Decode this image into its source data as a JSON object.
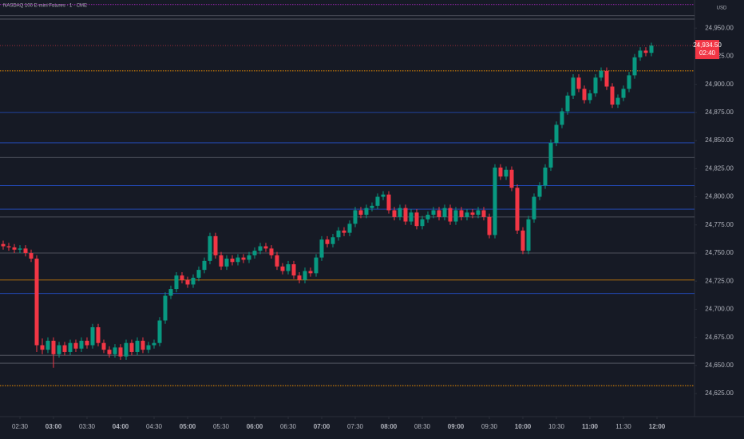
{
  "chart_data": {
    "type": "candlestick",
    "title": "NASDAQ 100 E-mini Futures · 1 · CME",
    "currency": "USD",
    "last_price": {
      "value": 24934.5,
      "label": "24,934.50"
    },
    "countdown": "02:40",
    "up_color": "#089981",
    "down_color": "#f23645",
    "ylim": [
      24613,
      24975
    ],
    "yticks": [
      {
        "value": 24625,
        "label": "24,625.00"
      },
      {
        "value": 24650,
        "label": "24,650.00"
      },
      {
        "value": 24675,
        "label": "24,675.00"
      },
      {
        "value": 24700,
        "label": "24,700.00"
      },
      {
        "value": 24725,
        "label": "24,725.00"
      },
      {
        "value": 24750,
        "label": "24,750.00"
      },
      {
        "value": 24775,
        "label": "24,775.00"
      },
      {
        "value": 24800,
        "label": "24,800.00"
      },
      {
        "value": 24825,
        "label": "24,825.00"
      },
      {
        "value": 24850,
        "label": "24,850.00"
      },
      {
        "value": 24875,
        "label": "24,875.00"
      },
      {
        "value": 24900,
        "label": "24,900.00"
      },
      {
        "value": 24925,
        "label": "24,925.00"
      },
      {
        "value": 24950,
        "label": "24,950.00"
      }
    ],
    "xticks": [
      "02:30",
      "03:00",
      "03:30",
      "04:00",
      "04:30",
      "05:00",
      "05:30",
      "06:00",
      "06:30",
      "07:00",
      "07:30",
      "08:00",
      "08:30",
      "09:00",
      "09:30",
      "10:00",
      "10:30",
      "11:00",
      "11:30",
      "12:00"
    ],
    "levels": [
      {
        "value": 24971,
        "color": "#9c27b0",
        "style": "dotted"
      },
      {
        "value": 24961,
        "color": "#787b86",
        "style": "solid"
      },
      {
        "value": 24958,
        "color": "#787b86",
        "style": "solid"
      },
      {
        "value": 24912,
        "color": "#ff9800",
        "style": "dotted"
      },
      {
        "value": 24875,
        "color": "#2962ff",
        "style": "solid"
      },
      {
        "value": 24848,
        "color": "#2962ff",
        "style": "solid"
      },
      {
        "value": 24835,
        "color": "#787b86",
        "style": "solid"
      },
      {
        "value": 24810,
        "color": "#2962ff",
        "style": "solid"
      },
      {
        "value": 24789,
        "color": "#2962ff",
        "style": "solid"
      },
      {
        "value": 24782,
        "color": "#787b86",
        "style": "solid"
      },
      {
        "value": 24750,
        "color": "#787b86",
        "style": "solid"
      },
      {
        "value": 24726,
        "color": "#ff9800",
        "style": "solid"
      },
      {
        "value": 24714,
        "color": "#2962ff",
        "style": "solid"
      },
      {
        "value": 24659,
        "color": "#787b86",
        "style": "solid"
      },
      {
        "value": 24652,
        "color": "#787b86",
        "style": "solid"
      },
      {
        "value": 24632,
        "color": "#ff9800",
        "style": "dotted"
      }
    ],
    "x": [
      "02:15",
      "02:20",
      "02:25",
      "02:30",
      "02:35",
      "02:40",
      "02:45",
      "02:50",
      "02:55",
      "03:00",
      "03:05",
      "03:10",
      "03:15",
      "03:20",
      "03:25",
      "03:30",
      "03:35",
      "03:40",
      "03:45",
      "03:50",
      "03:55",
      "04:00",
      "04:05",
      "04:10",
      "04:15",
      "04:20",
      "04:25",
      "04:30",
      "04:35",
      "04:40",
      "04:45",
      "04:50",
      "04:55",
      "05:00",
      "05:05",
      "05:10",
      "05:15",
      "05:20",
      "05:25",
      "05:30",
      "05:35",
      "05:40",
      "05:45",
      "05:50",
      "05:55",
      "06:00",
      "06:05",
      "06:10",
      "06:15",
      "06:20",
      "06:25",
      "06:30",
      "06:35",
      "06:40",
      "06:45",
      "06:50",
      "06:55",
      "07:00",
      "07:05",
      "07:10",
      "07:15",
      "07:20",
      "07:25",
      "07:30",
      "07:35",
      "07:40",
      "07:45",
      "07:50",
      "07:55",
      "08:00",
      "08:05",
      "08:10",
      "08:15",
      "08:20",
      "08:25",
      "08:30",
      "08:35",
      "08:40",
      "08:45",
      "08:50",
      "08:55",
      "09:00",
      "09:05",
      "09:10",
      "09:15",
      "09:20",
      "09:25",
      "09:30",
      "09:35",
      "09:40",
      "09:45",
      "09:50",
      "09:55",
      "10:00",
      "10:05",
      "10:10",
      "10:15",
      "10:20",
      "10:25",
      "10:30",
      "10:35",
      "10:40",
      "10:45",
      "10:50",
      "10:55",
      "11:00",
      "11:05",
      "11:10",
      "11:15",
      "11:20",
      "11:25",
      "11:30",
      "11:35",
      "11:40",
      "11:45",
      "11:50",
      "11:55"
    ],
    "ohlc": [
      [
        24758,
        24761,
        24753,
        24756
      ],
      [
        24756,
        24759,
        24752,
        24755
      ],
      [
        24755,
        24758,
        24750,
        24753
      ],
      [
        24753,
        24757,
        24750,
        24754
      ],
      [
        24754,
        24757,
        24747,
        24750
      ],
      [
        24750,
        24753,
        24742,
        24745
      ],
      [
        24745,
        24748,
        24662,
        24668
      ],
      [
        24668,
        24674,
        24660,
        24664
      ],
      [
        24664,
        24675,
        24661,
        24672
      ],
      [
        24672,
        24675,
        24648,
        24660
      ],
      [
        24660,
        24671,
        24657,
        24668
      ],
      [
        24668,
        24671,
        24659,
        24662
      ],
      [
        24662,
        24673,
        24659,
        24670
      ],
      [
        24670,
        24673,
        24662,
        24665
      ],
      [
        24665,
        24675,
        24662,
        24672
      ],
      [
        24672,
        24675,
        24665,
        24668
      ],
      [
        24668,
        24687,
        24665,
        24684
      ],
      [
        24684,
        24687,
        24667,
        24670
      ],
      [
        24670,
        24673,
        24661,
        24664
      ],
      [
        24664,
        24667,
        24657,
        24660
      ],
      [
        24660,
        24669,
        24657,
        24666
      ],
      [
        24666,
        24669,
        24655,
        24658
      ],
      [
        24658,
        24673,
        24655,
        24670
      ],
      [
        24670,
        24673,
        24659,
        24662
      ],
      [
        24662,
        24675,
        24659,
        24672
      ],
      [
        24672,
        24675,
        24661,
        24664
      ],
      [
        24664,
        24671,
        24661,
        24668
      ],
      [
        24668,
        24673,
        24665,
        24670
      ],
      [
        24670,
        24693,
        24667,
        24690
      ],
      [
        24690,
        24715,
        24687,
        24712
      ],
      [
        24712,
        24721,
        24709,
        24718
      ],
      [
        24718,
        24733,
        24715,
        24730
      ],
      [
        24730,
        24733,
        24723,
        24726
      ],
      [
        24726,
        24729,
        24719,
        24722
      ],
      [
        24722,
        24731,
        24719,
        24728
      ],
      [
        24728,
        24738,
        24725,
        24735
      ],
      [
        24735,
        24746,
        24732,
        24743
      ],
      [
        24743,
        24768,
        24740,
        24765
      ],
      [
        24765,
        24768,
        24745,
        24748
      ],
      [
        24748,
        24751,
        24735,
        24738
      ],
      [
        24738,
        24748,
        24735,
        24745
      ],
      [
        24745,
        24748,
        24739,
        24742
      ],
      [
        24742,
        24749,
        24739,
        24746
      ],
      [
        24746,
        24749,
        24741,
        24744
      ],
      [
        24744,
        24751,
        24741,
        24748
      ],
      [
        24748,
        24755,
        24745,
        24752
      ],
      [
        24752,
        24759,
        24749,
        24756
      ],
      [
        24756,
        24759,
        24751,
        24754
      ],
      [
        24754,
        24757,
        24745,
        24748
      ],
      [
        24748,
        24751,
        24735,
        24738
      ],
      [
        24738,
        24741,
        24731,
        24734
      ],
      [
        24734,
        24743,
        24731,
        24740
      ],
      [
        24740,
        24743,
        24727,
        24730
      ],
      [
        24730,
        24733,
        24723,
        24726
      ],
      [
        24726,
        24737,
        24723,
        24734
      ],
      [
        24734,
        24737,
        24729,
        24732
      ],
      [
        24732,
        24749,
        24729,
        24746
      ],
      [
        24746,
        24765,
        24743,
        24762
      ],
      [
        24762,
        24765,
        24755,
        24758
      ],
      [
        24758,
        24767,
        24755,
        24764
      ],
      [
        24764,
        24773,
        24761,
        24770
      ],
      [
        24770,
        24773,
        24765,
        24768
      ],
      [
        24768,
        24779,
        24765,
        24776
      ],
      [
        24776,
        24791,
        24773,
        24788
      ],
      [
        24788,
        24791,
        24781,
        24784
      ],
      [
        24784,
        24793,
        24781,
        24790
      ],
      [
        24790,
        24795,
        24787,
        24792
      ],
      [
        24792,
        24803,
        24789,
        24800
      ],
      [
        24800,
        24805,
        24797,
        24802
      ],
      [
        24802,
        24805,
        24785,
        24788
      ],
      [
        24788,
        24791,
        24779,
        24782
      ],
      [
        24782,
        24793,
        24779,
        24790
      ],
      [
        24790,
        24793,
        24775,
        24778
      ],
      [
        24778,
        24789,
        24775,
        24786
      ],
      [
        24786,
        24789,
        24771,
        24774
      ],
      [
        24774,
        24783,
        24771,
        24780
      ],
      [
        24780,
        24787,
        24777,
        24784
      ],
      [
        24784,
        24791,
        24781,
        24788
      ],
      [
        24788,
        24791,
        24779,
        24782
      ],
      [
        24782,
        24793,
        24779,
        24790
      ],
      [
        24790,
        24793,
        24775,
        24778
      ],
      [
        24778,
        24791,
        24775,
        24788
      ],
      [
        24788,
        24791,
        24779,
        24782
      ],
      [
        24782,
        24789,
        24779,
        24786
      ],
      [
        24786,
        24789,
        24781,
        24784
      ],
      [
        24784,
        24791,
        24781,
        24788
      ],
      [
        24788,
        24791,
        24779,
        24782
      ],
      [
        24782,
        24785,
        24763,
        24766
      ],
      [
        24766,
        24829,
        24763,
        24826
      ],
      [
        24826,
        24829,
        24815,
        24818
      ],
      [
        24818,
        24827,
        24815,
        24824
      ],
      [
        24824,
        24827,
        24805,
        24808
      ],
      [
        24808,
        24811,
        24767,
        24770
      ],
      [
        24770,
        24773,
        24749,
        24752
      ],
      [
        24752,
        24783,
        24749,
        24780
      ],
      [
        24780,
        24803,
        24777,
        24800
      ],
      [
        24800,
        24813,
        24797,
        24810
      ],
      [
        24810,
        24829,
        24807,
        24826
      ],
      [
        24826,
        24851,
        24823,
        24848
      ],
      [
        24848,
        24867,
        24845,
        24864
      ],
      [
        24864,
        24879,
        24861,
        24876
      ],
      [
        24876,
        24893,
        24873,
        24890
      ],
      [
        24890,
        24909,
        24887,
        24906
      ],
      [
        24906,
        24909,
        24893,
        24896
      ],
      [
        24896,
        24899,
        24883,
        24886
      ],
      [
        24886,
        24895,
        24883,
        24892
      ],
      [
        24892,
        24909,
        24889,
        24906
      ],
      [
        24906,
        24915,
        24903,
        24912
      ],
      [
        24912,
        24915,
        24895,
        24898
      ],
      [
        24898,
        24901,
        24879,
        24882
      ],
      [
        24882,
        24891,
        24879,
        24888
      ],
      [
        24888,
        24899,
        24885,
        24896
      ],
      [
        24896,
        24911,
        24893,
        24908
      ],
      [
        24908,
        24927,
        24905,
        24924
      ],
      [
        24924,
        24933,
        24921,
        24930
      ],
      [
        24930,
        24933,
        24925,
        24928
      ],
      [
        24928,
        24937,
        24925,
        24934.5
      ]
    ]
  }
}
